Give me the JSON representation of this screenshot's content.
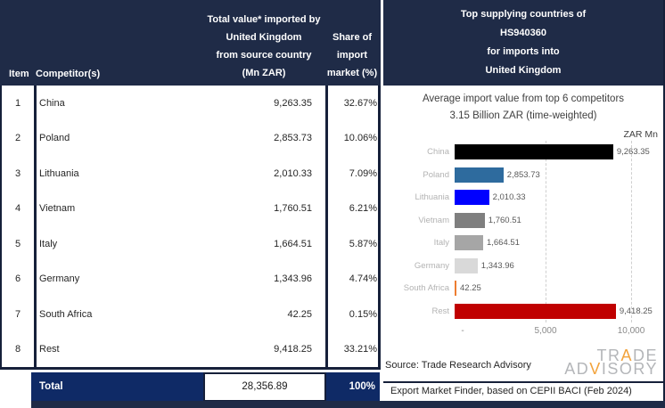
{
  "table": {
    "headers": {
      "item": "Item",
      "competitor": "Competitor(s)",
      "value_lines": [
        "Total value* imported by",
        "United Kingdom",
        "from source country",
        "(Mn ZAR)"
      ],
      "share_lines": [
        "Share of",
        "import",
        "market (%)"
      ]
    },
    "rows": [
      {
        "item": "1",
        "competitor": "China",
        "value": "9,263.35",
        "share": "32.67%"
      },
      {
        "item": "2",
        "competitor": "Poland",
        "value": "2,853.73",
        "share": "10.06%"
      },
      {
        "item": "3",
        "competitor": "Lithuania",
        "value": "2,010.33",
        "share": "7.09%"
      },
      {
        "item": "4",
        "competitor": "Vietnam",
        "value": "1,760.51",
        "share": "6.21%"
      },
      {
        "item": "5",
        "competitor": "Italy",
        "value": "1,664.51",
        "share": "5.87%"
      },
      {
        "item": "6",
        "competitor": "Germany",
        "value": "1,343.96",
        "share": "4.74%"
      },
      {
        "item": "7",
        "competitor": "South Africa",
        "value": "42.25",
        "share": "0.15%"
      },
      {
        "item": "8",
        "competitor": "Rest",
        "value": "9,418.25",
        "share": "33.21%"
      }
    ],
    "total": {
      "label": "Total",
      "value": "28,356.89",
      "share": "100%"
    }
  },
  "panel": {
    "header_lines": [
      "Top supplying countries of",
      "HS940360",
      "for imports into",
      "United Kingdom"
    ]
  },
  "chart_data": {
    "type": "bar",
    "orientation": "horizontal",
    "title": "Average import value from top 6 competitors",
    "subtitle": "3.15 Billion ZAR (time-weighted)",
    "unit_label": "ZAR Mn",
    "categories": [
      "China",
      "Poland",
      "Lithuania",
      "Vietnam",
      "Italy",
      "Germany",
      "South Africa",
      "Rest"
    ],
    "values": [
      9263.35,
      2853.73,
      2010.33,
      1760.51,
      1664.51,
      1343.96,
      42.25,
      9418.25
    ],
    "value_labels": [
      "9,263.35",
      "2,853.73",
      "2,010.33",
      "1,760.51",
      "1,664.51",
      "1,343.96",
      "42.25",
      "9,418.25"
    ],
    "bar_colors": [
      "#000000",
      "#2E6B9E",
      "#0000FF",
      "#7F7F7F",
      "#A6A6A6",
      "#D9D9D9",
      "#ED7D31",
      "#C00000"
    ],
    "xlim": [
      0,
      10000
    ],
    "x_ticks": [
      {
        "label": "-",
        "value": 0
      },
      {
        "label": "5,000",
        "value": 5000
      },
      {
        "label": "10,000",
        "value": 10000
      }
    ],
    "gridlines": [
      5000,
      10000
    ],
    "legend_position": "none",
    "grid": "dashed-vertical"
  },
  "source": {
    "line1": "Source: Trade Research Advisory",
    "line2": "Export Market Finder, based on CEPII BACI (Feb 2024)"
  },
  "logo": {
    "trade_pre": "TR",
    "trade_accent": "A",
    "trade_post": "DE",
    "adv_pre": "AD",
    "adv_accent": "V",
    "adv_post": "ISORY"
  },
  "colors": {
    "header_bg": "#1F2B47",
    "total_bg": "#0F2A66",
    "border": "#16203a",
    "logo_gray": "#b4b6b9",
    "logo_accent": "#F2A33C"
  }
}
